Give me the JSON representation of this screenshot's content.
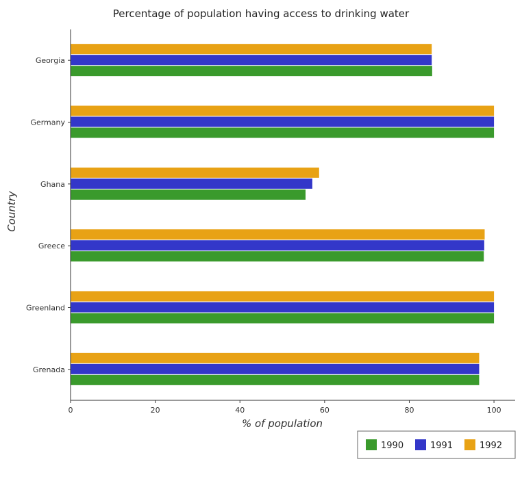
{
  "chart_data": {
    "type": "bar",
    "orientation": "horizontal",
    "title": "Percentage of population having access to drinking water",
    "xlabel": "% of population",
    "ylabel": "Country",
    "xlim": [
      0,
      105
    ],
    "x_ticks": [
      0,
      20,
      40,
      60,
      80,
      100
    ],
    "categories": [
      "Georgia",
      "Germany",
      "Ghana",
      "Greece",
      "Greenland",
      "Grenada"
    ],
    "series": [
      {
        "name": "1990",
        "color": "#3a9a2c",
        "values": [
          85.4,
          100,
          55.5,
          97.6,
          100,
          96.5
        ]
      },
      {
        "name": "1991",
        "color": "#3337c9",
        "values": [
          85.3,
          100,
          57.1,
          97.7,
          100,
          96.5
        ]
      },
      {
        "name": "1992",
        "color": "#e8a215",
        "values": [
          85.3,
          100,
          58.7,
          97.8,
          100,
          96.5
        ]
      }
    ],
    "grid": false,
    "legend_position": "bottom-right"
  }
}
